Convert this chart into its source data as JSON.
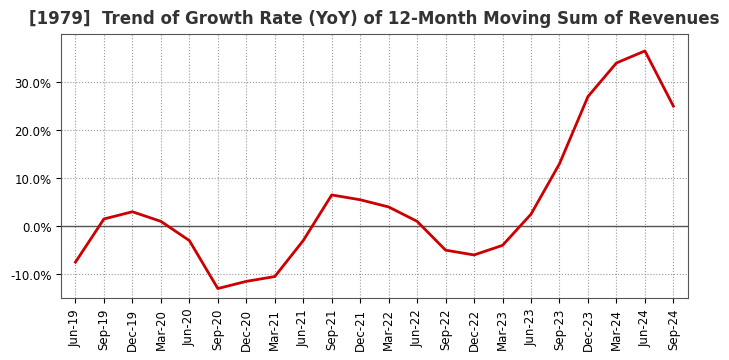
{
  "title": "[1979]  Trend of Growth Rate (YoY) of 12-Month Moving Sum of Revenues",
  "x_labels": [
    "Jun-19",
    "Sep-19",
    "Dec-19",
    "Mar-20",
    "Jun-20",
    "Sep-20",
    "Dec-20",
    "Mar-21",
    "Jun-21",
    "Sep-21",
    "Dec-21",
    "Mar-22",
    "Jun-22",
    "Sep-22",
    "Dec-22",
    "Mar-23",
    "Jun-23",
    "Sep-23",
    "Dec-23",
    "Mar-24",
    "Jun-24",
    "Sep-24"
  ],
  "y_values": [
    -7.5,
    1.5,
    3.0,
    1.0,
    -3.0,
    -13.0,
    -11.5,
    -10.5,
    -3.0,
    6.5,
    5.5,
    4.0,
    1.0,
    -5.0,
    -6.0,
    -4.0,
    2.5,
    13.0,
    27.0,
    34.0,
    36.5,
    25.0
  ],
  "line_color": "#cc0000",
  "line_width": 2.0,
  "background_color": "#ffffff",
  "plot_bg_color": "#ffffff",
  "grid_color": "#999999",
  "ylim": [
    -15,
    40
  ],
  "yticks": [
    -10.0,
    0.0,
    10.0,
    20.0,
    30.0
  ],
  "ytick_labels": [
    "-10.0%",
    "0.0%",
    "10.0%",
    "20.0%",
    "30.0%"
  ],
  "title_fontsize": 12,
  "tick_fontsize": 8.5,
  "spine_color": "#555555"
}
